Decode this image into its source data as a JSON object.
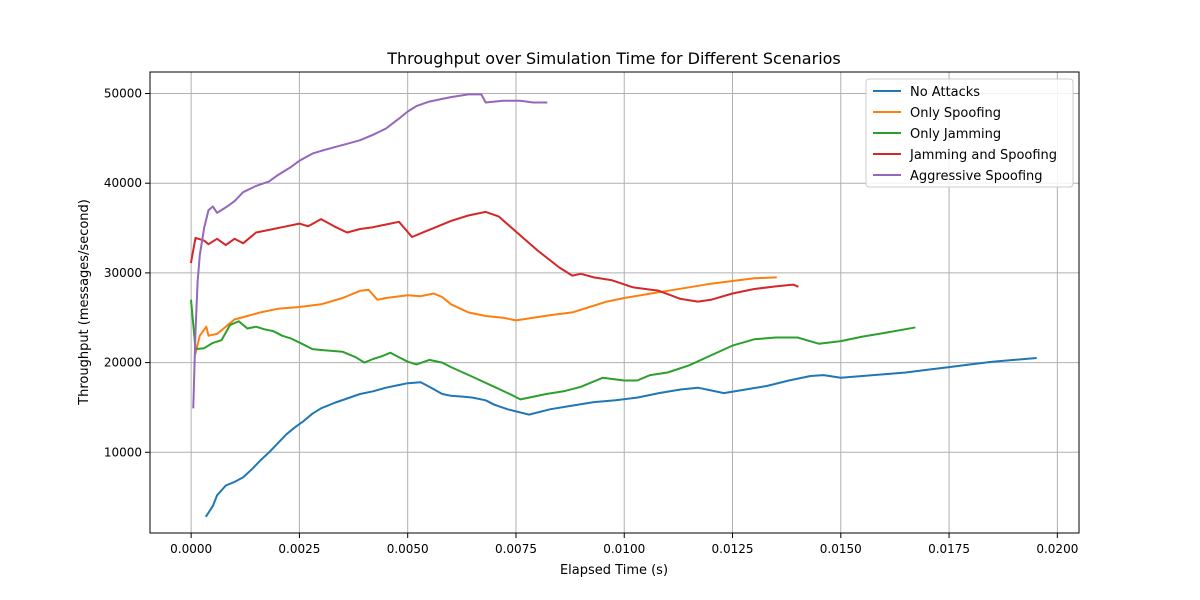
{
  "chart_data": {
    "type": "line",
    "title": "Throughput over Simulation Time for Different Scenarios",
    "xlabel": "Elapsed Time (s)",
    "ylabel": "Throughput (messages/second)",
    "xlim": [
      -0.00095,
      0.0205
    ],
    "ylim": [
      1000,
      52400
    ],
    "x_ticks": [
      0,
      0.0025,
      0.005,
      0.0075,
      0.01,
      0.0125,
      0.015,
      0.0175,
      0.02
    ],
    "x_tick_labels": [
      "0.0000",
      "0.0025",
      "0.0050",
      "0.0075",
      "0.0100",
      "0.0125",
      "0.0150",
      "0.0175",
      "0.0200"
    ],
    "y_ticks": [
      10000,
      20000,
      30000,
      40000,
      50000
    ],
    "y_tick_labels": [
      "10000",
      "20000",
      "30000",
      "40000",
      "50000"
    ],
    "grid": true,
    "legend_position": "top-right",
    "series": [
      {
        "name": "No Attacks",
        "color": "#1f77b4",
        "points": [
          [
            0.00035,
            2900
          ],
          [
            0.0005,
            4000
          ],
          [
            0.0006,
            5200
          ],
          [
            0.0008,
            6300
          ],
          [
            0.001,
            6700
          ],
          [
            0.0012,
            7200
          ],
          [
            0.0014,
            8100
          ],
          [
            0.0016,
            9100
          ],
          [
            0.0018,
            10000
          ],
          [
            0.002,
            11000
          ],
          [
            0.0022,
            12000
          ],
          [
            0.0024,
            12800
          ],
          [
            0.0026,
            13500
          ],
          [
            0.0028,
            14300
          ],
          [
            0.003,
            14900
          ],
          [
            0.0033,
            15500
          ],
          [
            0.0036,
            16000
          ],
          [
            0.0039,
            16500
          ],
          [
            0.0042,
            16800
          ],
          [
            0.0045,
            17200
          ],
          [
            0.0048,
            17500
          ],
          [
            0.005,
            17700
          ],
          [
            0.0053,
            17800
          ],
          [
            0.0055,
            17300
          ],
          [
            0.0058,
            16500
          ],
          [
            0.006,
            16300
          ],
          [
            0.0063,
            16200
          ],
          [
            0.0065,
            16100
          ],
          [
            0.0068,
            15800
          ],
          [
            0.007,
            15300
          ],
          [
            0.0073,
            14800
          ],
          [
            0.0078,
            14200
          ],
          [
            0.0083,
            14800
          ],
          [
            0.0088,
            15200
          ],
          [
            0.0093,
            15600
          ],
          [
            0.0098,
            15800
          ],
          [
            0.0103,
            16100
          ],
          [
            0.0108,
            16600
          ],
          [
            0.0113,
            17000
          ],
          [
            0.0117,
            17200
          ],
          [
            0.012,
            16900
          ],
          [
            0.0123,
            16600
          ],
          [
            0.0128,
            17000
          ],
          [
            0.0133,
            17400
          ],
          [
            0.0138,
            18000
          ],
          [
            0.0143,
            18500
          ],
          [
            0.0146,
            18600
          ],
          [
            0.015,
            18300
          ],
          [
            0.0155,
            18500
          ],
          [
            0.016,
            18700
          ],
          [
            0.0165,
            18900
          ],
          [
            0.017,
            19200
          ],
          [
            0.0175,
            19500
          ],
          [
            0.018,
            19800
          ],
          [
            0.0185,
            20100
          ],
          [
            0.019,
            20300
          ],
          [
            0.0195,
            20500
          ]
        ]
      },
      {
        "name": "Only Spoofing",
        "color": "#ff7f0e",
        "points": [
          [
            0.0001,
            21000
          ],
          [
            0.0002,
            23000
          ],
          [
            0.00035,
            24000
          ],
          [
            0.0004,
            23000
          ],
          [
            0.0006,
            23200
          ],
          [
            0.0008,
            24000
          ],
          [
            0.001,
            24800
          ],
          [
            0.0013,
            25200
          ],
          [
            0.0016,
            25600
          ],
          [
            0.002,
            26000
          ],
          [
            0.0025,
            26200
          ],
          [
            0.003,
            26500
          ],
          [
            0.0035,
            27200
          ],
          [
            0.0039,
            28000
          ],
          [
            0.0041,
            28100
          ],
          [
            0.0043,
            27000
          ],
          [
            0.0045,
            27200
          ],
          [
            0.005,
            27500
          ],
          [
            0.0053,
            27400
          ],
          [
            0.0056,
            27700
          ],
          [
            0.0058,
            27300
          ],
          [
            0.006,
            26500
          ],
          [
            0.0064,
            25600
          ],
          [
            0.0068,
            25200
          ],
          [
            0.0072,
            25000
          ],
          [
            0.0075,
            24700
          ],
          [
            0.0079,
            25000
          ],
          [
            0.0083,
            25300
          ],
          [
            0.0088,
            25600
          ],
          [
            0.0092,
            26200
          ],
          [
            0.0096,
            26800
          ],
          [
            0.01,
            27200
          ],
          [
            0.0105,
            27600
          ],
          [
            0.011,
            28000
          ],
          [
            0.0115,
            28400
          ],
          [
            0.012,
            28800
          ],
          [
            0.0125,
            29100
          ],
          [
            0.013,
            29400
          ],
          [
            0.0135,
            29500
          ]
        ]
      },
      {
        "name": "Only Jamming",
        "color": "#2ca02c",
        "points": [
          [
            0.0,
            26900
          ],
          [
            0.0001,
            21500
          ],
          [
            0.0003,
            21600
          ],
          [
            0.0005,
            22200
          ],
          [
            0.0007,
            22500
          ],
          [
            0.0009,
            24200
          ],
          [
            0.0011,
            24600
          ],
          [
            0.0013,
            23800
          ],
          [
            0.0015,
            24000
          ],
          [
            0.0017,
            23700
          ],
          [
            0.0019,
            23500
          ],
          [
            0.0021,
            23000
          ],
          [
            0.0023,
            22700
          ],
          [
            0.0026,
            22000
          ],
          [
            0.0028,
            21500
          ],
          [
            0.003,
            21400
          ],
          [
            0.0035,
            21200
          ],
          [
            0.0038,
            20600
          ],
          [
            0.004,
            20000
          ],
          [
            0.0042,
            20400
          ],
          [
            0.0044,
            20700
          ],
          [
            0.0046,
            21100
          ],
          [
            0.0048,
            20600
          ],
          [
            0.005,
            20100
          ],
          [
            0.0052,
            19800
          ],
          [
            0.0055,
            20300
          ],
          [
            0.0058,
            20000
          ],
          [
            0.006,
            19500
          ],
          [
            0.0065,
            18400
          ],
          [
            0.007,
            17300
          ],
          [
            0.0074,
            16400
          ],
          [
            0.0076,
            15900
          ],
          [
            0.0078,
            16100
          ],
          [
            0.0082,
            16500
          ],
          [
            0.0086,
            16800
          ],
          [
            0.009,
            17300
          ],
          [
            0.0095,
            18300
          ],
          [
            0.01,
            18000
          ],
          [
            0.0103,
            18000
          ],
          [
            0.0106,
            18600
          ],
          [
            0.011,
            18900
          ],
          [
            0.0115,
            19700
          ],
          [
            0.012,
            20800
          ],
          [
            0.0125,
            21900
          ],
          [
            0.013,
            22600
          ],
          [
            0.0135,
            22800
          ],
          [
            0.014,
            22800
          ],
          [
            0.0145,
            22100
          ],
          [
            0.015,
            22400
          ],
          [
            0.0155,
            22900
          ],
          [
            0.016,
            23300
          ],
          [
            0.0167,
            23900
          ]
        ]
      },
      {
        "name": "Jamming and Spoofing",
        "color": "#d62728",
        "points": [
          [
            0.0,
            31200
          ],
          [
            0.0001,
            33900
          ],
          [
            0.0003,
            33600
          ],
          [
            0.0004,
            33200
          ],
          [
            0.0006,
            33800
          ],
          [
            0.0008,
            33100
          ],
          [
            0.001,
            33800
          ],
          [
            0.0012,
            33300
          ],
          [
            0.0015,
            34500
          ],
          [
            0.0018,
            34800
          ],
          [
            0.0022,
            35200
          ],
          [
            0.0025,
            35500
          ],
          [
            0.0027,
            35200
          ],
          [
            0.003,
            36000
          ],
          [
            0.0033,
            35200
          ],
          [
            0.0036,
            34500
          ],
          [
            0.0039,
            34900
          ],
          [
            0.0042,
            35100
          ],
          [
            0.0045,
            35400
          ],
          [
            0.0048,
            35700
          ],
          [
            0.0051,
            34000
          ],
          [
            0.0054,
            34600
          ],
          [
            0.0057,
            35200
          ],
          [
            0.006,
            35800
          ],
          [
            0.0064,
            36400
          ],
          [
            0.0068,
            36800
          ],
          [
            0.0071,
            36300
          ],
          [
            0.0075,
            34600
          ],
          [
            0.008,
            32500
          ],
          [
            0.0085,
            30600
          ],
          [
            0.0088,
            29700
          ],
          [
            0.009,
            29900
          ],
          [
            0.0093,
            29500
          ],
          [
            0.0097,
            29200
          ],
          [
            0.0102,
            28400
          ],
          [
            0.0108,
            28000
          ],
          [
            0.0113,
            27100
          ],
          [
            0.0117,
            26800
          ],
          [
            0.012,
            27000
          ],
          [
            0.0125,
            27700
          ],
          [
            0.013,
            28200
          ],
          [
            0.0135,
            28500
          ],
          [
            0.0139,
            28700
          ],
          [
            0.014,
            28500
          ]
        ]
      },
      {
        "name": "Aggressive Spoofing",
        "color": "#9467bd",
        "points": [
          [
            5e-05,
            15000
          ],
          [
            0.0001,
            23500
          ],
          [
            0.00015,
            29000
          ],
          [
            0.0002,
            32000
          ],
          [
            0.0003,
            35000
          ],
          [
            0.0004,
            37000
          ],
          [
            0.0005,
            37400
          ],
          [
            0.0006,
            36700
          ],
          [
            0.0008,
            37300
          ],
          [
            0.001,
            38000
          ],
          [
            0.0012,
            39000
          ],
          [
            0.0015,
            39700
          ],
          [
            0.0018,
            40200
          ],
          [
            0.002,
            40900
          ],
          [
            0.0023,
            41800
          ],
          [
            0.0025,
            42500
          ],
          [
            0.0028,
            43300
          ],
          [
            0.003,
            43600
          ],
          [
            0.0033,
            44000
          ],
          [
            0.0036,
            44400
          ],
          [
            0.0039,
            44800
          ],
          [
            0.0042,
            45400
          ],
          [
            0.0045,
            46100
          ],
          [
            0.0048,
            47200
          ],
          [
            0.005,
            48000
          ],
          [
            0.0052,
            48600
          ],
          [
            0.0055,
            49100
          ],
          [
            0.0058,
            49400
          ],
          [
            0.006,
            49600
          ],
          [
            0.0064,
            49900
          ],
          [
            0.0067,
            49900
          ],
          [
            0.0068,
            49000
          ],
          [
            0.0072,
            49200
          ],
          [
            0.0076,
            49200
          ],
          [
            0.0079,
            49000
          ],
          [
            0.0082,
            49000
          ]
        ]
      }
    ]
  }
}
